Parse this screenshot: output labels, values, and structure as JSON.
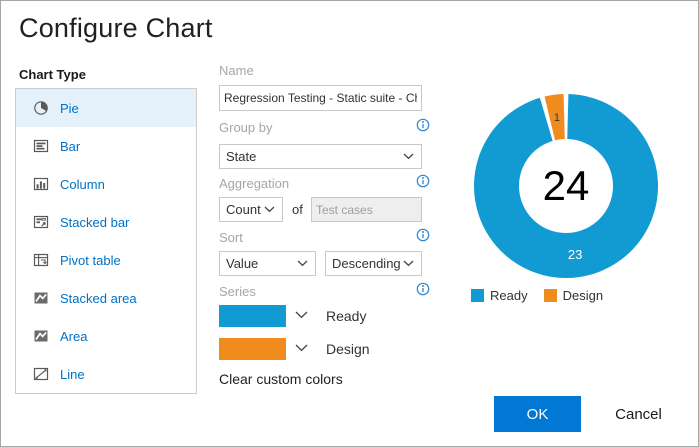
{
  "dialog": {
    "title": "Configure Chart"
  },
  "chart_type": {
    "label": "Chart Type",
    "items": [
      {
        "label": "Pie",
        "icon": "pie-icon",
        "selected": true
      },
      {
        "label": "Bar",
        "icon": "bar-icon",
        "selected": false
      },
      {
        "label": "Column",
        "icon": "column-icon",
        "selected": false
      },
      {
        "label": "Stacked bar",
        "icon": "stacked-bar-icon",
        "selected": false
      },
      {
        "label": "Pivot table",
        "icon": "pivot-table-icon",
        "selected": false
      },
      {
        "label": "Stacked area",
        "icon": "stacked-area-icon",
        "selected": false
      },
      {
        "label": "Area",
        "icon": "area-icon",
        "selected": false
      },
      {
        "label": "Line",
        "icon": "line-icon",
        "selected": false
      }
    ]
  },
  "form": {
    "name": {
      "label": "Name",
      "value": "Regression Testing - Static suite - Ch"
    },
    "group_by": {
      "label": "Group by",
      "value": "State"
    },
    "aggregation": {
      "label": "Aggregation",
      "value": "Count",
      "of_label": "of",
      "field_value": "Test cases"
    },
    "sort": {
      "label": "Sort",
      "by_value": "Value",
      "direction_value": "Descending"
    },
    "series": {
      "label": "Series",
      "items": [
        {
          "name": "Ready",
          "color": "#129bd3"
        },
        {
          "name": "Design",
          "color": "#f08c1e"
        }
      ],
      "clear_label": "Clear custom colors"
    }
  },
  "chart_data": {
    "type": "pie",
    "donut": true,
    "title": "",
    "center_label": "24",
    "total": 24,
    "categories": [
      "Ready",
      "Design"
    ],
    "series": [
      {
        "name": "Ready",
        "value": 23,
        "color": "#129bd3",
        "label_color": "#ffffff"
      },
      {
        "name": "Design",
        "value": 1,
        "color": "#f08c1e",
        "label_color": "#333333"
      }
    ],
    "legend_position": "bottom"
  },
  "footer": {
    "ok_label": "OK",
    "cancel_label": "Cancel"
  },
  "colors": {
    "accent": "#0078d4",
    "list_link": "#0072c6",
    "selected_bg": "#e4f1fb",
    "dialog_border": "#a6a6a6"
  }
}
